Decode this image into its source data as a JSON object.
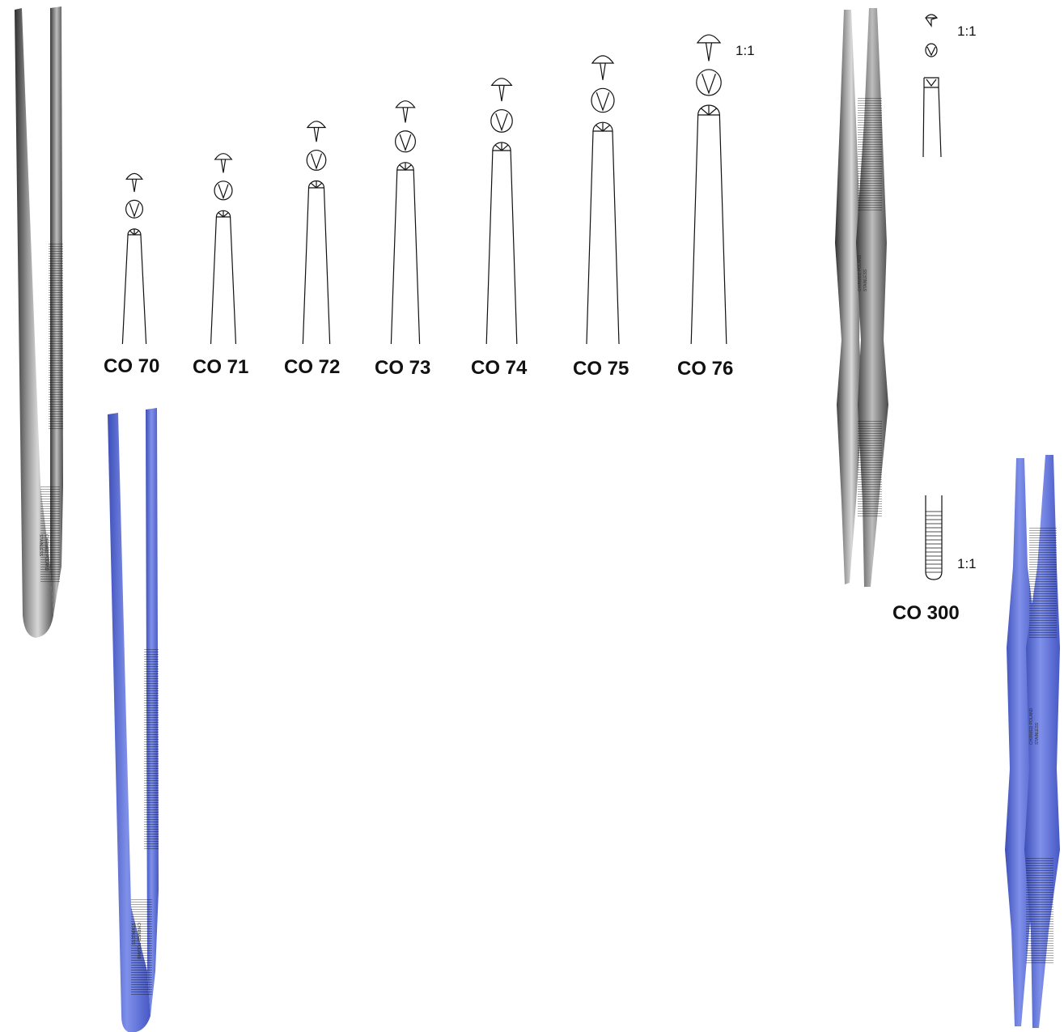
{
  "models": [
    {
      "label": "CO 70",
      "tip_scale": 0.55,
      "height": 1.0
    },
    {
      "label": "CO 71",
      "tip_scale": 0.62,
      "height": 1.0
    },
    {
      "label": "CO 72",
      "tip_scale": 0.72,
      "height": 1.0
    },
    {
      "label": "CO 73",
      "tip_scale": 0.8,
      "height": 1.0
    },
    {
      "label": "CO 74",
      "tip_scale": 0.9,
      "height": 1.0
    },
    {
      "label": "CO 75",
      "tip_scale": 1.0,
      "height": 1.0
    },
    {
      "label": "CO 76",
      "tip_scale": 1.15,
      "height": 1.0
    }
  ],
  "scale_labels": {
    "tips_group": "1:1",
    "co300_tip": "1:1",
    "co300_serration": "1:1"
  },
  "co300": {
    "label": "CO 300"
  },
  "engraving": {
    "brand": "CHIRMED POLAND",
    "steel": "STAINLESS",
    "mark": "CE"
  },
  "colors": {
    "steel": "#8a8a8a",
    "steel_dark": "#3a3a3a",
    "blue": "#5f72d8",
    "blue_dark": "#3d4fb8",
    "line": "#111111"
  }
}
